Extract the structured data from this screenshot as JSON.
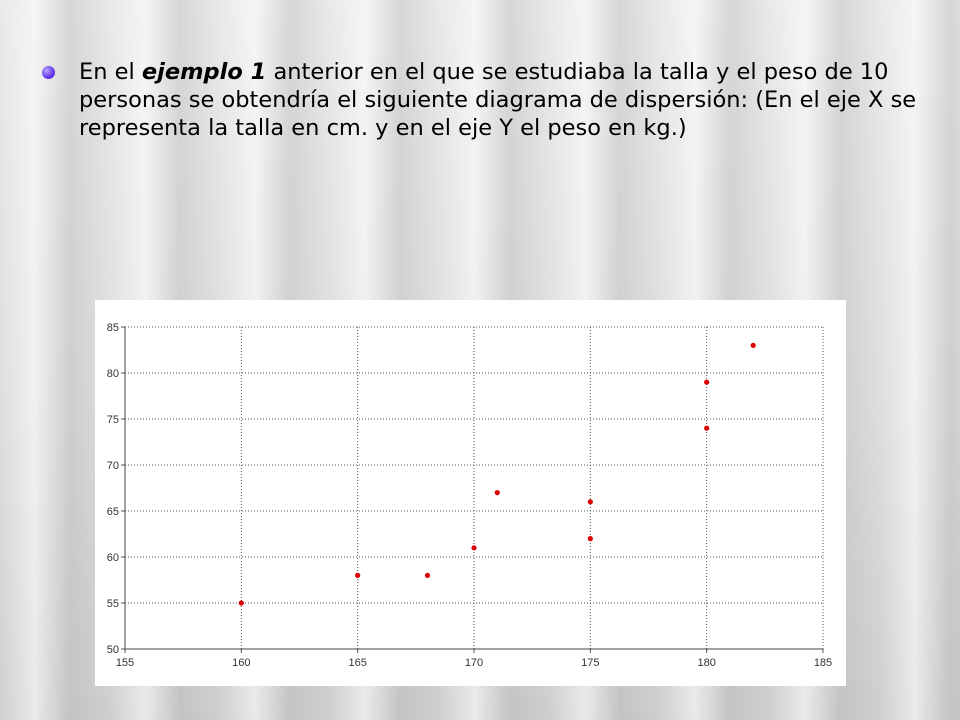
{
  "slide": {
    "text_parts": {
      "p1": "En el ",
      "p2": "ejemplo 1",
      "p3": " anterior en el que se estudiaba la talla y el peso de 10 personas se obtendría el siguiente diagrama de dispersión: (En el eje X se representa la talla en cm. y en el eje Y el peso en kg.)"
    },
    "bullet_color": "#6a3df0"
  },
  "chart_data": {
    "type": "scatter",
    "title": "",
    "xlabel": "",
    "ylabel": "",
    "xlim": [
      155,
      185
    ],
    "ylim": [
      50,
      85
    ],
    "x_ticks": [
      155,
      160,
      165,
      170,
      175,
      180,
      185
    ],
    "y_ticks": [
      50,
      55,
      60,
      65,
      70,
      75,
      80,
      85
    ],
    "grid": true,
    "point_color": "#dd0000",
    "points": [
      {
        "x": 160,
        "y": 55
      },
      {
        "x": 165,
        "y": 58
      },
      {
        "x": 168,
        "y": 58
      },
      {
        "x": 170,
        "y": 61
      },
      {
        "x": 171,
        "y": 67
      },
      {
        "x": 175,
        "y": 62
      },
      {
        "x": 175,
        "y": 66
      },
      {
        "x": 180,
        "y": 74
      },
      {
        "x": 180,
        "y": 79
      },
      {
        "x": 182,
        "y": 83
      }
    ]
  }
}
